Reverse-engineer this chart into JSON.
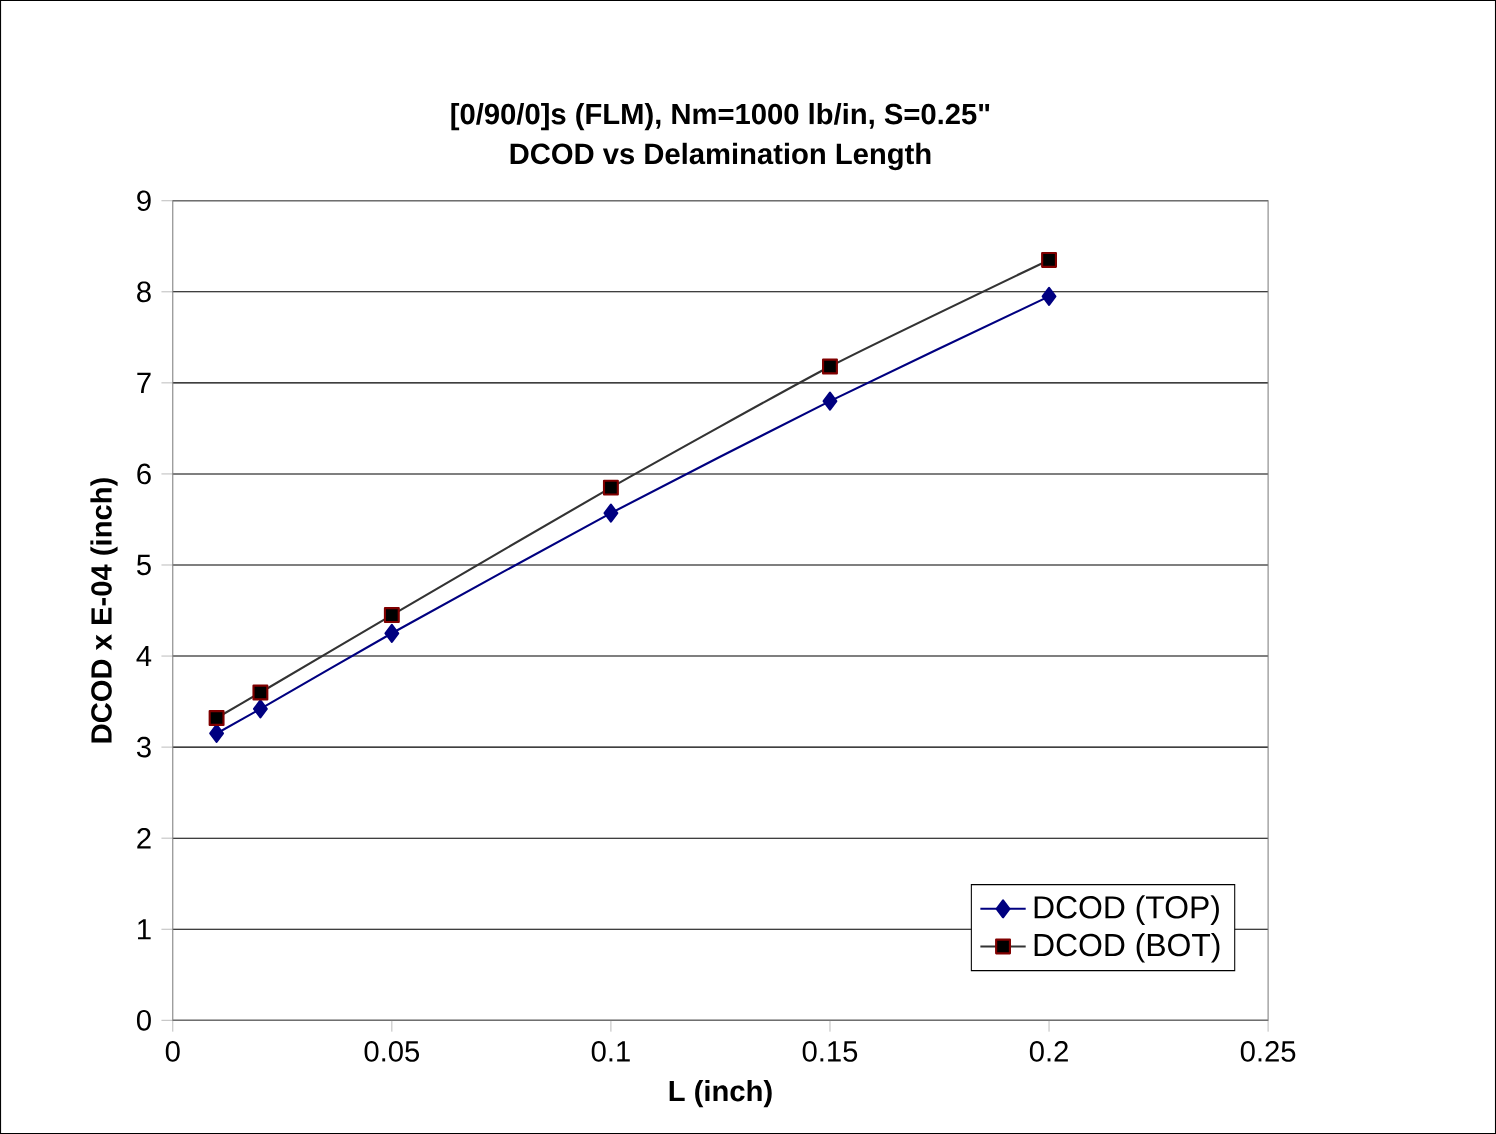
{
  "chart_data": {
    "type": "line",
    "title": "[0/90/0]s  (FLM), Nm=1000 lb/in, S=0.25\"",
    "subtitle": "DCOD vs Delamination Length",
    "xlabel": "L (inch)",
    "ylabel": "DCOD x E-04 (inch)",
    "xlim": [
      0,
      0.25
    ],
    "xticks": [
      0,
      0.05,
      0.1,
      0.15,
      0.2,
      0.25
    ],
    "ylim": [
      0,
      9
    ],
    "yticks": [
      0,
      1,
      2,
      3,
      4,
      5,
      6,
      7,
      8,
      9
    ],
    "grid": "y",
    "legend": "bottom right",
    "series": [
      {
        "name": "DCOD (TOP)",
        "color": "#000080",
        "marker": "diamond",
        "x": [
          0.01,
          0.02,
          0.05,
          0.1,
          0.15,
          0.2
        ],
        "values": [
          3.15,
          3.42,
          4.25,
          5.57,
          6.8,
          7.95
        ]
      },
      {
        "name": "DCOD (BOT)",
        "color": "#333333",
        "marker": "square",
        "x": [
          0.01,
          0.02,
          0.05,
          0.1,
          0.15,
          0.2
        ],
        "values": [
          3.32,
          3.6,
          4.45,
          5.85,
          7.18,
          8.35
        ]
      }
    ]
  }
}
